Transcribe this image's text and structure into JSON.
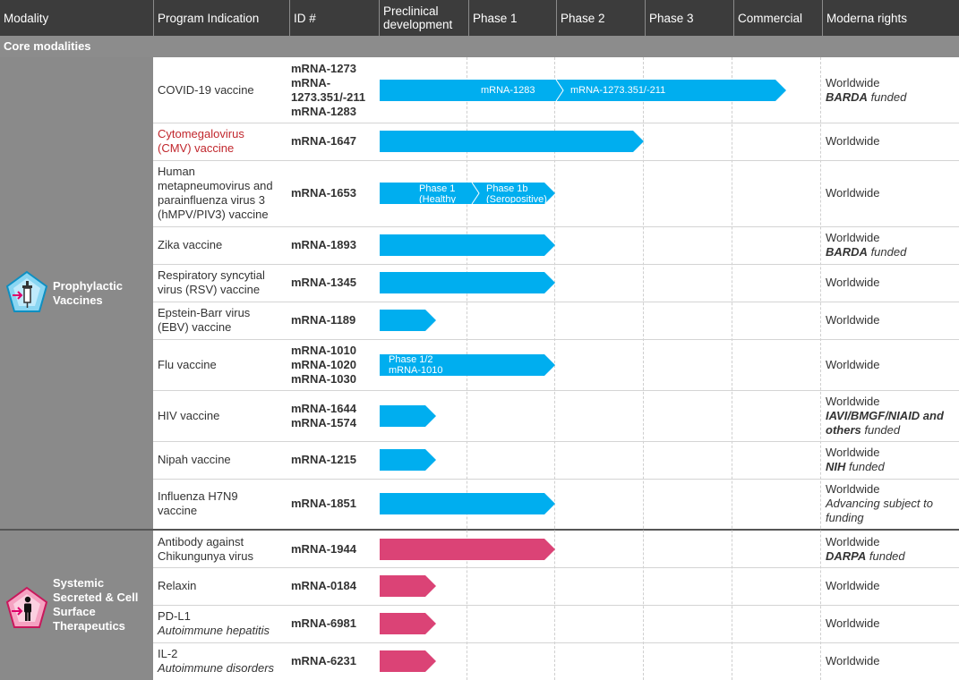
{
  "colors": {
    "header_bg": "#3c3c3c",
    "core_bg": "#8c8c8c",
    "modality_bg": "#8a8a8a",
    "vaccine_bar": "#00aeef",
    "therapeutic_bar": "#db4376"
  },
  "columns": [
    "Modality",
    "Program Indication",
    "ID #",
    "Preclinical development",
    "Phase 1",
    "Phase 2",
    "Phase 3",
    "Commercial",
    "Moderna rights"
  ],
  "section": "Core modalities",
  "modalities": [
    {
      "label": "Prophylactic Vaccines",
      "icon": "syringe-icon"
    },
    {
      "label": "Systemic Secreted & Cell Surface Therapeutics",
      "icon": "person-icon"
    }
  ],
  "rows": [
    {
      "indication": "COVID-19 vaccine",
      "ids": [
        "mRNA-1273",
        "mRNA-1273.351/-211",
        "mRNA-1283"
      ],
      "rights": "Worldwide",
      "rights_emph": "BARDA",
      "rights_tail": " funded",
      "stage": "Phase 3",
      "bar_labels": [
        "mRNA-1283",
        "mRNA-1273.351/-211"
      ]
    },
    {
      "indication": "Cytomegalovirus (CMV) vaccine",
      "ids": [
        "mRNA-1647"
      ],
      "rights": "Worldwide",
      "stage": "Phase 2"
    },
    {
      "indication": "Human metapneumovirus and parainfluenza virus 3 (hMPV/PIV3) vaccine",
      "ids": [
        "mRNA-1653"
      ],
      "rights": "Worldwide",
      "stage": "Phase 1",
      "bar_labels": [
        "Phase 1 (Healthy volunteers)",
        "Phase 1b (Seropositive)"
      ]
    },
    {
      "indication": "Zika vaccine",
      "ids": [
        "mRNA-1893"
      ],
      "rights": "Worldwide",
      "rights_emph": "BARDA",
      "rights_tail": " funded",
      "stage": "Phase 1"
    },
    {
      "indication": "Respiratory syncytial virus (RSV) vaccine",
      "ids": [
        "mRNA-1345"
      ],
      "rights": "Worldwide",
      "stage": "Phase 1"
    },
    {
      "indication": "Epstein-Barr virus (EBV) vaccine",
      "ids": [
        "mRNA-1189"
      ],
      "rights": "Worldwide",
      "stage": "Preclinical development"
    },
    {
      "indication": "Flu vaccine",
      "ids": [
        "mRNA-1010",
        "mRNA-1020",
        "mRNA-1030"
      ],
      "rights": "Worldwide",
      "stage": "Phase 1",
      "bar_labels": [
        "Phase 1/2 mRNA-1010"
      ]
    },
    {
      "indication": "HIV vaccine",
      "ids": [
        "mRNA-1644",
        "mRNA-1574"
      ],
      "rights": "Worldwide",
      "rights_emph": "IAVI/BMGF/NIAID and others",
      "rights_tail": " funded",
      "stage": "Preclinical development"
    },
    {
      "indication": "Nipah vaccine",
      "ids": [
        "mRNA-1215"
      ],
      "rights": "Worldwide",
      "rights_emph": "NIH",
      "rights_tail": " funded",
      "stage": "Preclinical development"
    },
    {
      "indication": "Influenza H7N9 vaccine",
      "ids": [
        "mRNA-1851"
      ],
      "rights": "Worldwide",
      "rights_italic": "Advancing subject to funding",
      "stage": "Phase 1"
    },
    {
      "indication": "Antibody against Chikungunya virus",
      "ids": [
        "mRNA-1944"
      ],
      "rights": "Worldwide",
      "rights_emph": "DARPA",
      "rights_tail": " funded",
      "stage": "Phase 1"
    },
    {
      "indication": "Relaxin",
      "ids": [
        "mRNA-0184"
      ],
      "rights": "Worldwide",
      "stage": "Preclinical development"
    },
    {
      "indication": "PD-L1",
      "indication_sub": "Autoimmune hepatitis",
      "ids": [
        "mRNA-6981"
      ],
      "rights": "Worldwide",
      "stage": "Preclinical development"
    },
    {
      "indication": "IL-2",
      "indication_sub": "Autoimmune disorders",
      "ids": [
        "mRNA-6231"
      ],
      "rights": "Worldwide",
      "stage": "Preclinical development"
    }
  ]
}
